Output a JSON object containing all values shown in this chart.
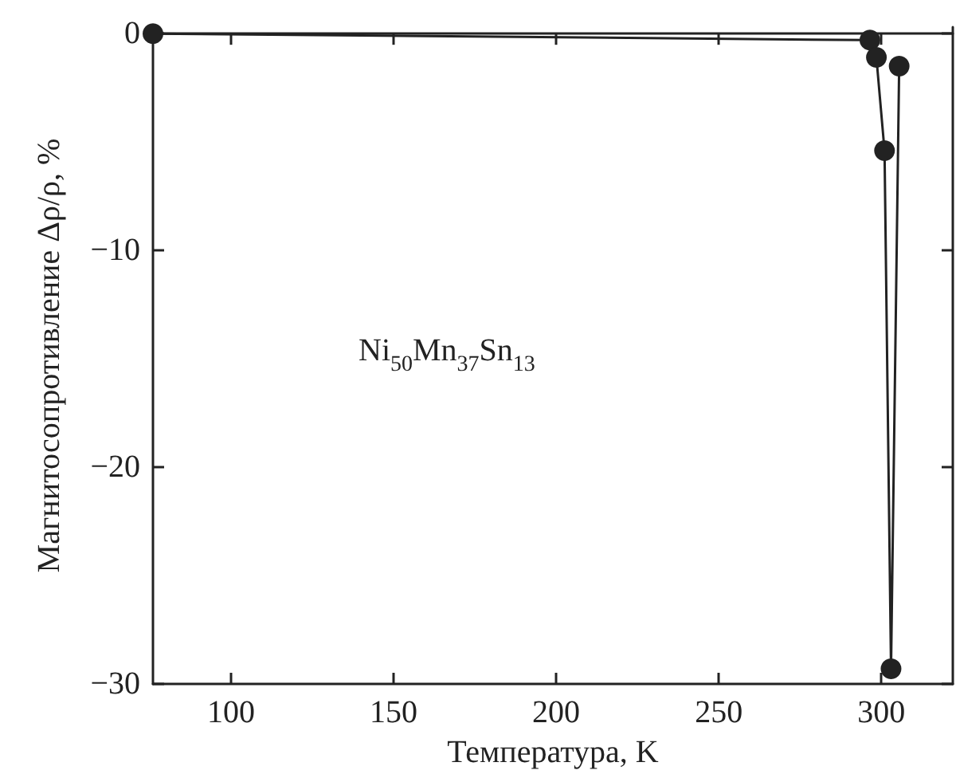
{
  "chart_data": {
    "type": "line",
    "xlabel": "Температура, K",
    "ylabel": "Магнитосопротивление Δρ/ρ, %",
    "annotations": [
      "Ni$_{50}$Mn$_{37}$Sn$_{13}$"
    ],
    "x": [
      76,
      296.5,
      298.5,
      301,
      303,
      305.5
    ],
    "series": [
      {
        "color": "#222222",
        "values": [
          0,
          -0.3,
          -1.1,
          -5.4,
          -29.3,
          -1.5
        ]
      }
    ],
    "xlim": [
      76,
      322
    ],
    "xticks": [
      100,
      150,
      200,
      250,
      300
    ],
    "ylim": [
      -30,
      0.3
    ],
    "yticks": [
      -30,
      -20,
      -10,
      0
    ],
    "marker": "circle",
    "line_style": "solid"
  }
}
